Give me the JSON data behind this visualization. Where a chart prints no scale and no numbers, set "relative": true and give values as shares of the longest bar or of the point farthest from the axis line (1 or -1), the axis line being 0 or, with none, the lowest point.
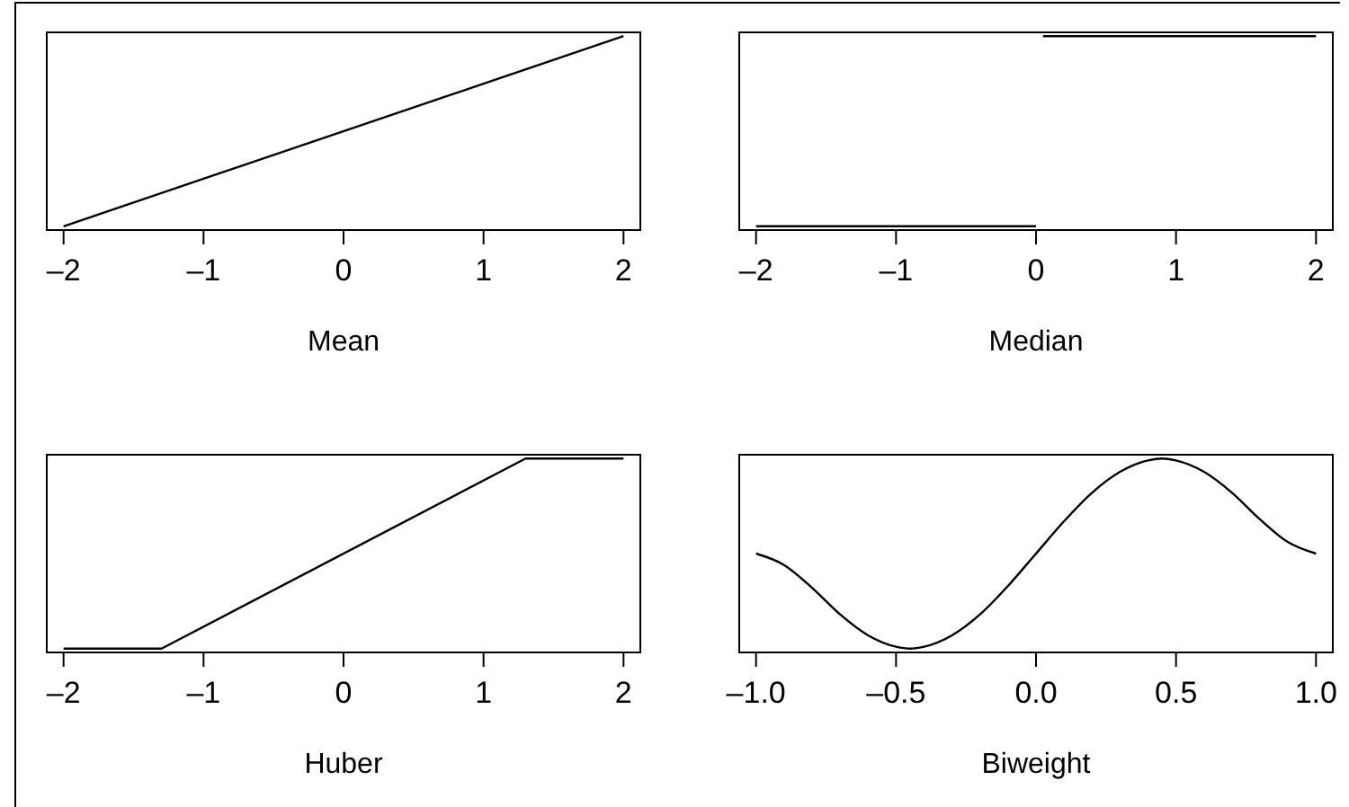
{
  "chart_data": [
    {
      "type": "line",
      "relative": true,
      "xlabel": "Mean",
      "tick_labels": "x",
      "xlim": [
        -2.12,
        2.12
      ],
      "xticks": [
        {
          "value": -2,
          "label": "–2"
        },
        {
          "value": -1,
          "label": "–1"
        },
        0,
        1,
        2
      ],
      "series": [
        {
          "color": "#000000",
          "x": [
            -2,
            2
          ],
          "values": [
            0,
            1
          ]
        }
      ]
    },
    {
      "type": "line",
      "relative": true,
      "xlabel": "Median",
      "tick_labels": "x",
      "xlim": [
        -2.12,
        2.12
      ],
      "xticks": [
        {
          "value": -2,
          "label": "–2"
        },
        {
          "value": -1,
          "label": "–1"
        },
        0,
        1,
        2
      ],
      "series": [
        {
          "color": "#000000",
          "x": [
            -2,
            0,
            null,
            0.05,
            2
          ],
          "values": [
            0,
            0,
            null,
            1,
            1
          ]
        }
      ]
    },
    {
      "type": "line",
      "relative": true,
      "xlabel": "Huber",
      "tick_labels": "x",
      "xlim": [
        -2.12,
        2.12
      ],
      "xticks": [
        {
          "value": -2,
          "label": "–2"
        },
        {
          "value": -1,
          "label": "–1"
        },
        0,
        1,
        2
      ],
      "series": [
        {
          "color": "#000000",
          "x": [
            -2,
            -1.3,
            1.3,
            2
          ],
          "values": [
            0,
            0,
            1,
            1
          ]
        }
      ]
    },
    {
      "type": "line",
      "relative": true,
      "xlabel": "Biweight",
      "tick_labels": "x",
      "xlim": [
        -1.06,
        1.06
      ],
      "xticks": [
        {
          "value": -1,
          "label": "–1.0"
        },
        {
          "value": -0.5,
          "label": "–0.5"
        },
        {
          "value": 0,
          "label": "0.0"
        },
        0.5,
        {
          "value": 1,
          "label": "1.0"
        }
      ],
      "series": [
        {
          "color": "#000000",
          "x": [
            -1,
            -0.9,
            -0.8,
            -0.7,
            -0.6,
            -0.5,
            -0.45,
            -0.4,
            -0.3,
            -0.2,
            -0.1,
            0,
            0.1,
            0.2,
            0.3,
            0.4,
            0.45,
            0.5,
            0.6,
            0.7,
            0.8,
            0.9,
            1
          ],
          "values": [
            0.5,
            0.44,
            0.32,
            0.18,
            0.07,
            0.01,
            0,
            0.01,
            0.07,
            0.18,
            0.33,
            0.5,
            0.67,
            0.82,
            0.93,
            0.99,
            1,
            0.99,
            0.93,
            0.82,
            0.68,
            0.56,
            0.5
          ]
        }
      ]
    }
  ]
}
